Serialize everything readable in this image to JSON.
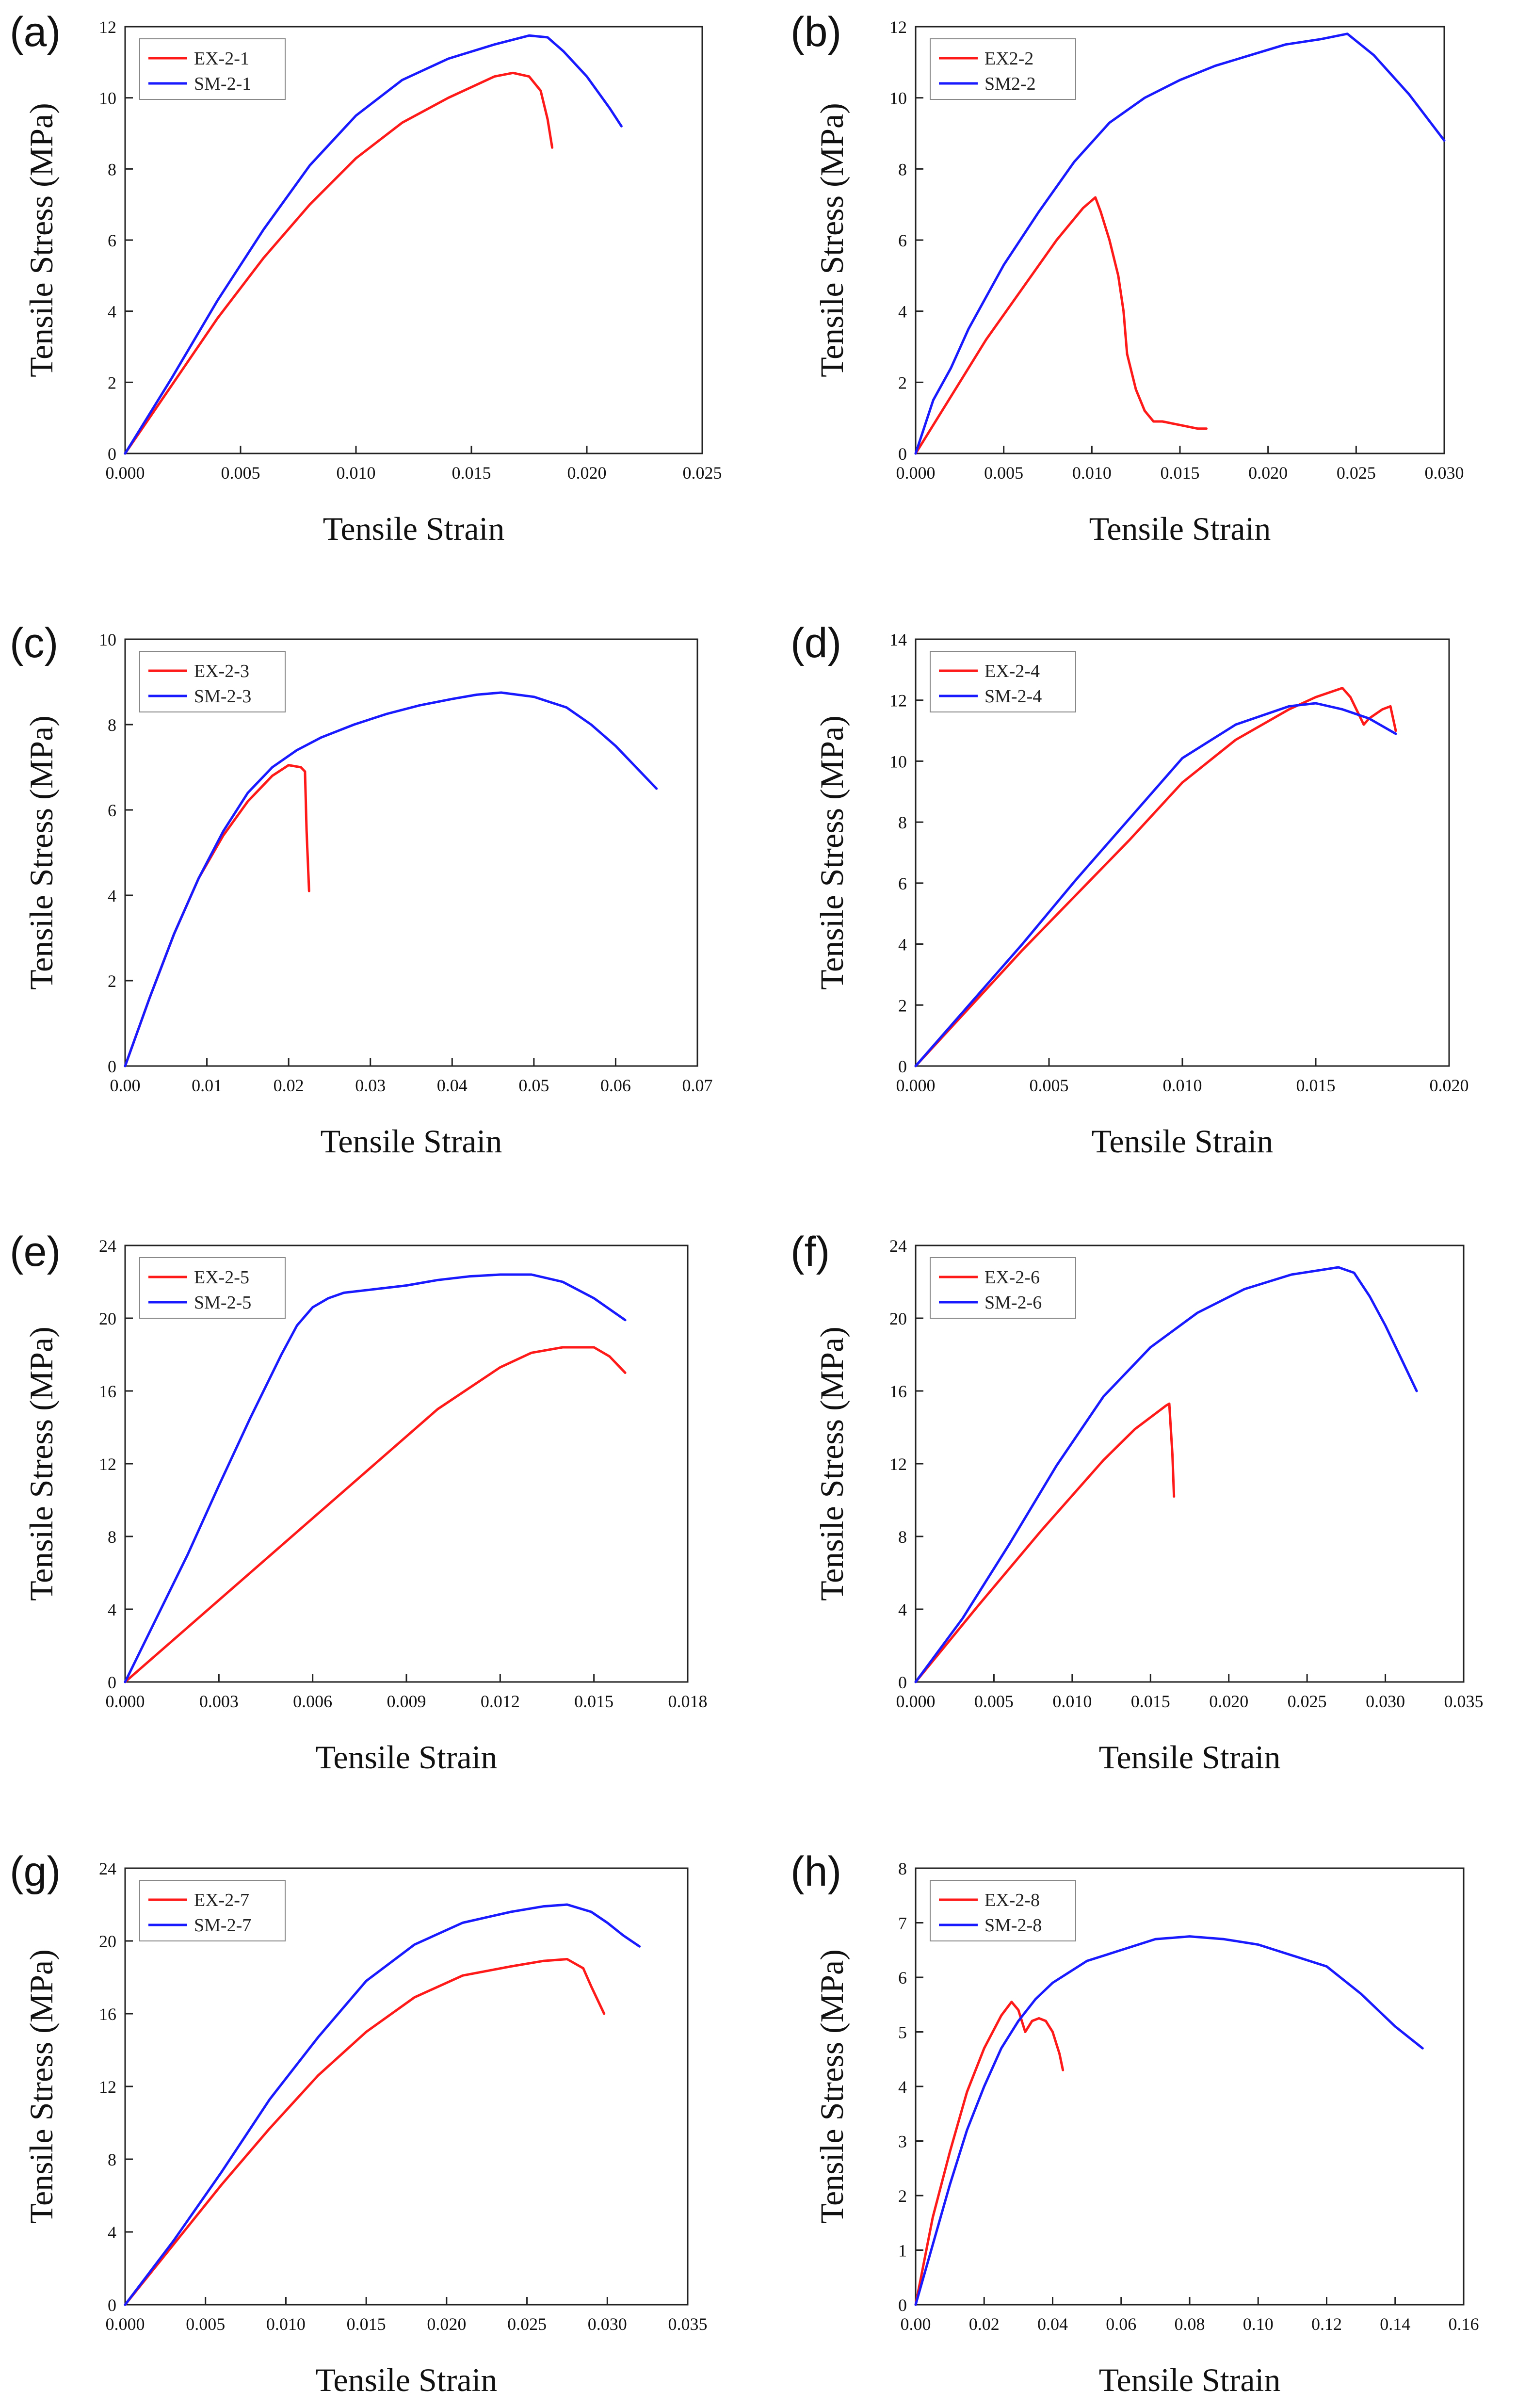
{
  "colors": {
    "ex": "#ff1a1a",
    "sm": "#1a1aff",
    "axis": "#222222"
  },
  "chart_data": [
    {
      "type": "line",
      "panel": "(a)",
      "xlabel": "Tensile Strain",
      "ylabel": "Tensile Stress (MPa)",
      "xlim": [
        0,
        0.025
      ],
      "ylim": [
        0,
        12
      ],
      "xticks": [
        "0.000",
        "0.005",
        "0.010",
        "0.015",
        "0.020",
        "0.025"
      ],
      "yticks": [
        "0",
        "2",
        "4",
        "6",
        "8",
        "10",
        "12"
      ],
      "legend_position": "top-left",
      "series": [
        {
          "name": "EX-2-1",
          "color_key": "ex",
          "x": [
            0,
            0.002,
            0.004,
            0.006,
            0.008,
            0.01,
            0.012,
            0.014,
            0.015,
            0.016,
            0.0168,
            0.0175,
            0.018,
            0.0183,
            0.0185
          ],
          "y": [
            0,
            1.9,
            3.8,
            5.5,
            7.0,
            8.3,
            9.3,
            10.0,
            10.3,
            10.6,
            10.7,
            10.6,
            10.2,
            9.4,
            8.6
          ]
        },
        {
          "name": "SM-2-1",
          "color_key": "sm",
          "x": [
            0,
            0.002,
            0.004,
            0.006,
            0.008,
            0.01,
            0.012,
            0.014,
            0.016,
            0.0175,
            0.0183,
            0.019,
            0.02,
            0.021,
            0.0215
          ],
          "y": [
            0,
            2.1,
            4.3,
            6.3,
            8.1,
            9.5,
            10.5,
            11.1,
            11.5,
            11.75,
            11.7,
            11.3,
            10.6,
            9.7,
            9.2
          ]
        }
      ]
    },
    {
      "type": "line",
      "panel": "(b)",
      "xlabel": "Tensile Strain",
      "ylabel": "Tensile Stress (MPa)",
      "xlim": [
        0,
        0.03
      ],
      "ylim": [
        0,
        12
      ],
      "xticks": [
        "0.000",
        "0.005",
        "0.010",
        "0.015",
        "0.020",
        "0.025",
        "0.030"
      ],
      "yticks": [
        "0",
        "2",
        "4",
        "6",
        "8",
        "10",
        "12"
      ],
      "legend_position": "top-left",
      "series": [
        {
          "name": "EX2-2",
          "color_key": "ex",
          "x": [
            0,
            0.002,
            0.004,
            0.006,
            0.008,
            0.0095,
            0.0102,
            0.0105,
            0.011,
            0.0115,
            0.0118,
            0.012,
            0.0125,
            0.013,
            0.0135,
            0.014,
            0.015,
            0.016,
            0.0165
          ],
          "y": [
            0,
            1.6,
            3.2,
            4.6,
            6.0,
            6.9,
            7.2,
            6.8,
            6.0,
            5.0,
            4.0,
            2.8,
            1.8,
            1.2,
            0.9,
            0.9,
            0.8,
            0.7,
            0.7
          ]
        },
        {
          "name": "SM2-2",
          "color_key": "sm",
          "x": [
            0,
            0.001,
            0.002,
            0.003,
            0.005,
            0.007,
            0.009,
            0.011,
            0.013,
            0.015,
            0.017,
            0.019,
            0.021,
            0.023,
            0.0245,
            0.026,
            0.028,
            0.03
          ],
          "y": [
            0,
            1.5,
            2.4,
            3.5,
            5.3,
            6.8,
            8.2,
            9.3,
            10.0,
            10.5,
            10.9,
            11.2,
            11.5,
            11.65,
            11.8,
            11.2,
            10.1,
            8.8
          ]
        }
      ]
    },
    {
      "type": "line",
      "panel": "(c)",
      "xlabel": "Tensile Strain",
      "ylabel": "Tensile Stress (MPa)",
      "xlim": [
        0,
        0.07
      ],
      "ylim": [
        0,
        10
      ],
      "xticks": [
        "0.00",
        "0.01",
        "0.02",
        "0.03",
        "0.04",
        "0.05",
        "0.06",
        "0.07"
      ],
      "yticks": [
        "0",
        "2",
        "4",
        "6",
        "8",
        "10"
      ],
      "legend_position": "top-left",
      "series": [
        {
          "name": "EX-2-3",
          "color_key": "ex",
          "x": [
            0,
            0.003,
            0.006,
            0.009,
            0.012,
            0.015,
            0.018,
            0.02,
            0.0215,
            0.022,
            0.0222,
            0.0225
          ],
          "y": [
            0,
            1.6,
            3.1,
            4.4,
            5.4,
            6.2,
            6.8,
            7.05,
            7.0,
            6.9,
            5.5,
            4.1
          ]
        },
        {
          "name": "SM-2-3",
          "color_key": "sm",
          "x": [
            0,
            0.003,
            0.006,
            0.009,
            0.012,
            0.015,
            0.018,
            0.021,
            0.024,
            0.028,
            0.032,
            0.036,
            0.04,
            0.043,
            0.046,
            0.05,
            0.054,
            0.057,
            0.06,
            0.063,
            0.065
          ],
          "y": [
            0,
            1.6,
            3.1,
            4.4,
            5.5,
            6.4,
            7.0,
            7.4,
            7.7,
            8.0,
            8.25,
            8.45,
            8.6,
            8.7,
            8.75,
            8.65,
            8.4,
            8.0,
            7.5,
            6.9,
            6.5
          ]
        }
      ]
    },
    {
      "type": "line",
      "panel": "(d)",
      "xlabel": "Tensile Strain",
      "ylabel": "Tensile Stress (MPa)",
      "xlim": [
        0,
        0.02
      ],
      "ylim": [
        0,
        14
      ],
      "xticks": [
        "0.000",
        "0.005",
        "0.010",
        "0.015",
        "0.020"
      ],
      "yticks": [
        "0",
        "2",
        "4",
        "6",
        "8",
        "10",
        "12",
        "14"
      ],
      "legend_position": "top-left",
      "series": [
        {
          "name": "EX-2-4",
          "color_key": "ex",
          "x": [
            0,
            0.002,
            0.004,
            0.006,
            0.008,
            0.01,
            0.012,
            0.014,
            0.015,
            0.016,
            0.0163,
            0.0168,
            0.017,
            0.0175,
            0.0178,
            0.018
          ],
          "y": [
            0,
            1.9,
            3.8,
            5.6,
            7.4,
            9.3,
            10.7,
            11.7,
            12.1,
            12.4,
            12.1,
            11.2,
            11.4,
            11.7,
            11.8,
            11.0
          ]
        },
        {
          "name": "SM-2-4",
          "color_key": "sm",
          "x": [
            0,
            0.002,
            0.004,
            0.006,
            0.008,
            0.01,
            0.012,
            0.014,
            0.015,
            0.016,
            0.017,
            0.018
          ],
          "y": [
            0,
            2.0,
            4.0,
            6.1,
            8.1,
            10.1,
            11.2,
            11.8,
            11.9,
            11.7,
            11.4,
            10.9
          ]
        }
      ]
    },
    {
      "type": "line",
      "panel": "(e)",
      "xlabel": "Tensile Strain",
      "ylabel": "Tensile Stress (MPa)",
      "xlim": [
        0,
        0.018
      ],
      "ylim": [
        0,
        24
      ],
      "xticks": [
        "0.000",
        "0.003",
        "0.006",
        "0.009",
        "0.012",
        "0.015",
        "0.018"
      ],
      "yticks": [
        "0",
        "4",
        "8",
        "12",
        "16",
        "20",
        "24"
      ],
      "legend_position": "top-left",
      "series": [
        {
          "name": "EX-2-5",
          "color_key": "ex",
          "x": [
            0,
            0.002,
            0.004,
            0.006,
            0.008,
            0.01,
            0.012,
            0.013,
            0.014,
            0.015,
            0.0155,
            0.016
          ],
          "y": [
            0,
            3.0,
            6.0,
            9.0,
            12.0,
            15.0,
            17.3,
            18.1,
            18.4,
            18.4,
            17.9,
            17.0
          ]
        },
        {
          "name": "SM-2-5",
          "color_key": "sm",
          "x": [
            0,
            0.001,
            0.002,
            0.003,
            0.004,
            0.005,
            0.0055,
            0.006,
            0.0065,
            0.007,
            0.008,
            0.009,
            0.01,
            0.011,
            0.012,
            0.013,
            0.014,
            0.015,
            0.016
          ],
          "y": [
            0,
            3.5,
            7.0,
            10.8,
            14.5,
            18.0,
            19.6,
            20.6,
            21.1,
            21.4,
            21.6,
            21.8,
            22.1,
            22.3,
            22.4,
            22.4,
            22.0,
            21.1,
            19.9
          ]
        }
      ]
    },
    {
      "type": "line",
      "panel": "(f)",
      "xlabel": "Tensile Strain",
      "ylabel": "Tensile Stress (MPa)",
      "xlim": [
        0,
        0.035
      ],
      "ylim": [
        0,
        24
      ],
      "xticks": [
        "0.000",
        "0.005",
        "0.010",
        "0.015",
        "0.020",
        "0.025",
        "0.030",
        "0.035"
      ],
      "yticks": [
        "0",
        "4",
        "8",
        "12",
        "16",
        "20",
        "24"
      ],
      "legend_position": "top-left",
      "series": [
        {
          "name": "EX-2-6",
          "color_key": "ex",
          "x": [
            0,
            0.004,
            0.008,
            0.012,
            0.014,
            0.016,
            0.0162,
            0.0164,
            0.0165
          ],
          "y": [
            0,
            4.2,
            8.3,
            12.2,
            13.9,
            15.2,
            15.3,
            12.5,
            10.2
          ]
        },
        {
          "name": "SM-2-6",
          "color_key": "sm",
          "x": [
            0,
            0.003,
            0.006,
            0.009,
            0.012,
            0.015,
            0.018,
            0.021,
            0.024,
            0.027,
            0.028,
            0.029,
            0.03,
            0.031,
            0.032
          ],
          "y": [
            0,
            3.5,
            7.6,
            11.9,
            15.7,
            18.4,
            20.3,
            21.6,
            22.4,
            22.8,
            22.5,
            21.2,
            19.6,
            17.8,
            16.0
          ]
        }
      ]
    },
    {
      "type": "line",
      "panel": "(g)",
      "xlabel": "Tensile Strain",
      "ylabel": "Tensile Stress (MPa)",
      "xlim": [
        0,
        0.035
      ],
      "ylim": [
        0,
        24
      ],
      "xticks": [
        "0.000",
        "0.005",
        "0.010",
        "0.015",
        "0.020",
        "0.025",
        "0.030",
        "0.035"
      ],
      "yticks": [
        "0",
        "4",
        "8",
        "12",
        "16",
        "20",
        "24"
      ],
      "legend_position": "top-left",
      "series": [
        {
          "name": "EX-2-7",
          "color_key": "ex",
          "x": [
            0,
            0.003,
            0.006,
            0.009,
            0.012,
            0.015,
            0.018,
            0.021,
            0.024,
            0.026,
            0.0275,
            0.0285,
            0.029,
            0.0298
          ],
          "y": [
            0,
            3.3,
            6.6,
            9.7,
            12.6,
            15.0,
            16.9,
            18.1,
            18.6,
            18.9,
            19.0,
            18.5,
            17.5,
            16.0
          ]
        },
        {
          "name": "SM-2-7",
          "color_key": "sm",
          "x": [
            0,
            0.003,
            0.006,
            0.009,
            0.012,
            0.015,
            0.018,
            0.021,
            0.024,
            0.026,
            0.0275,
            0.029,
            0.03,
            0.031,
            0.032
          ],
          "y": [
            0,
            3.5,
            7.3,
            11.3,
            14.7,
            17.8,
            19.8,
            21.0,
            21.6,
            21.9,
            22.0,
            21.6,
            21.0,
            20.3,
            19.7
          ]
        }
      ]
    },
    {
      "type": "line",
      "panel": "(h)",
      "xlabel": "Tensile Strain",
      "ylabel": "Tensile Stress (MPa)",
      "xlim": [
        0,
        0.16
      ],
      "ylim": [
        0,
        8
      ],
      "xticks": [
        "0.00",
        "0.02",
        "0.04",
        "0.06",
        "0.08",
        "0.10",
        "0.12",
        "0.14",
        "0.16"
      ],
      "yticks": [
        "0",
        "1",
        "2",
        "3",
        "4",
        "5",
        "6",
        "7",
        "8"
      ],
      "legend_position": "top-left",
      "series": [
        {
          "name": "EX-2-8",
          "color_key": "ex",
          "x": [
            0,
            0.005,
            0.01,
            0.015,
            0.02,
            0.025,
            0.028,
            0.03,
            0.032,
            0.034,
            0.036,
            0.038,
            0.04,
            0.042,
            0.043
          ],
          "y": [
            0,
            1.6,
            2.8,
            3.9,
            4.7,
            5.3,
            5.55,
            5.4,
            5.0,
            5.2,
            5.25,
            5.2,
            5.0,
            4.6,
            4.3
          ]
        },
        {
          "name": "SM-2-8",
          "color_key": "sm",
          "x": [
            0,
            0.005,
            0.01,
            0.015,
            0.02,
            0.025,
            0.03,
            0.035,
            0.04,
            0.05,
            0.06,
            0.07,
            0.08,
            0.09,
            0.1,
            0.11,
            0.12,
            0.13,
            0.14,
            0.148
          ],
          "y": [
            0,
            1.1,
            2.2,
            3.2,
            4.0,
            4.7,
            5.2,
            5.6,
            5.9,
            6.3,
            6.5,
            6.7,
            6.75,
            6.7,
            6.6,
            6.4,
            6.2,
            5.7,
            5.1,
            4.7
          ]
        }
      ]
    }
  ]
}
